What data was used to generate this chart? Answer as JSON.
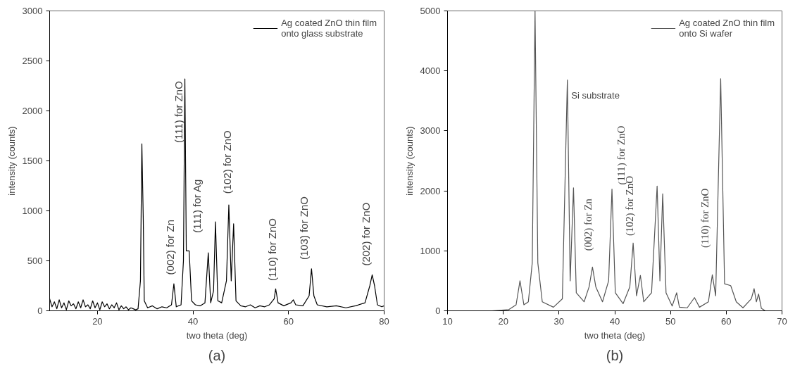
{
  "chart_data": [
    {
      "type": "line",
      "xlabel": "two theta (deg)",
      "ylabel": "intensity (counts)",
      "xlim": [
        10,
        80
      ],
      "ylim": [
        0,
        3000
      ],
      "xticks": [
        20,
        40,
        60,
        80
      ],
      "yticks": [
        0,
        500,
        1000,
        1500,
        2000,
        2500,
        3000
      ],
      "grid": false,
      "legend": "top right",
      "marker": "none",
      "line_style": "solid",
      "series": [
        {
          "name": "Ag coated ZnO thin film onto glass substrate",
          "color": "#000000",
          "x": [
            10,
            10.5,
            11,
            11.5,
            12,
            12.5,
            13,
            13.5,
            14,
            14.5,
            15,
            15.5,
            16,
            16.5,
            17,
            17.5,
            18,
            18.5,
            19,
            19.5,
            20,
            20.5,
            21,
            21.5,
            22,
            22.5,
            23,
            23.5,
            24,
            24.5,
            25,
            25.5,
            26,
            26.5,
            27,
            27.5,
            28,
            28.5,
            29,
            29.3,
            29.6,
            29.8,
            30.5,
            31.5,
            32.5,
            33.5,
            34.5,
            35.5,
            36,
            36.5,
            37.5,
            38,
            38.3,
            38.6,
            39.2,
            39.7,
            40.5,
            41.5,
            42.5,
            43.2,
            43.7,
            44.3,
            44.7,
            45.2,
            46,
            47,
            47.5,
            48,
            48.5,
            49,
            50,
            51,
            52,
            53,
            54,
            55,
            56,
            57,
            57.3,
            57.8,
            59,
            60.5,
            61,
            61.5,
            63,
            64.3,
            64.8,
            65.3,
            66,
            68,
            70,
            72,
            74,
            76,
            77,
            77.5,
            78,
            78.6,
            79.5,
            80
          ],
          "values": [
            120,
            40,
            90,
            20,
            110,
            30,
            80,
            10,
            100,
            50,
            70,
            20,
            90,
            30,
            110,
            40,
            60,
            20,
            100,
            30,
            80,
            10,
            90,
            40,
            70,
            20,
            60,
            30,
            80,
            10,
            50,
            20,
            40,
            10,
            30,
            20,
            10,
            20,
            300,
            1670,
            900,
            100,
            30,
            50,
            20,
            40,
            30,
            60,
            270,
            40,
            60,
            500,
            2320,
            600,
            600,
            100,
            60,
            50,
            80,
            580,
            80,
            200,
            890,
            100,
            80,
            300,
            1060,
            300,
            870,
            100,
            50,
            40,
            60,
            30,
            50,
            40,
            60,
            120,
            220,
            80,
            50,
            80,
            110,
            60,
            50,
            150,
            420,
            150,
            60,
            40,
            50,
            30,
            50,
            80,
            250,
            360,
            250,
            60,
            40,
            50
          ]
        }
      ],
      "annotations": [
        "(002) for Zn",
        "(111) for ZnO",
        "(111) for Ag",
        "(102) for ZnO",
        "(110) for ZnO",
        "(103) for ZnO",
        "(202) for ZnO",
        "(a)"
      ]
    },
    {
      "type": "line",
      "xlabel": "two theta (deg)",
      "ylabel": "intensity (counts)",
      "xlim": [
        10,
        70
      ],
      "ylim": [
        0,
        5000
      ],
      "xticks": [
        10,
        20,
        30,
        40,
        50,
        60,
        70
      ],
      "yticks": [
        0,
        1000,
        2000,
        3000,
        4000,
        5000
      ],
      "grid": false,
      "legend": "top right",
      "marker": "none",
      "line_style": "solid",
      "series": [
        {
          "name": "Ag coated ZnO thin film onto Si wafer",
          "color": "#555555",
          "x": [
            10,
            18,
            21,
            22.3,
            23,
            23.7,
            24.5,
            25.2,
            25.7,
            26.2,
            27,
            29,
            30.6,
            31.5,
            32,
            32.6,
            33.1,
            34.5,
            35.4,
            36,
            36.6,
            37.8,
            38.9,
            39.5,
            40.1,
            41.5,
            42.7,
            43.3,
            43.9,
            44.6,
            45.2,
            46.6,
            47.6,
            48.1,
            48.6,
            49.2,
            50.3,
            51.1,
            51.6,
            53,
            54.3,
            55.2,
            56.8,
            57.5,
            58.1,
            59,
            59.7,
            60.8,
            61.8,
            63,
            64.5,
            65,
            65.4,
            65.8,
            66.3,
            67
          ],
          "values": [
            0,
            0,
            20,
            100,
            500,
            100,
            150,
            800,
            5000,
            800,
            150,
            60,
            200,
            3850,
            500,
            2050,
            300,
            150,
            400,
            730,
            400,
            150,
            500,
            2030,
            300,
            120,
            400,
            1130,
            250,
            590,
            150,
            300,
            2080,
            500,
            1950,
            300,
            80,
            300,
            60,
            50,
            220,
            60,
            150,
            600,
            250,
            3870,
            450,
            420,
            150,
            50,
            200,
            370,
            150,
            280,
            40,
            0
          ]
        }
      ],
      "annotations": [
        "Si substrate",
        "(002) for Zn",
        "(111) for ZnO",
        "(102) for ZnO",
        "(110) for ZnO",
        "(b)"
      ]
    }
  ]
}
